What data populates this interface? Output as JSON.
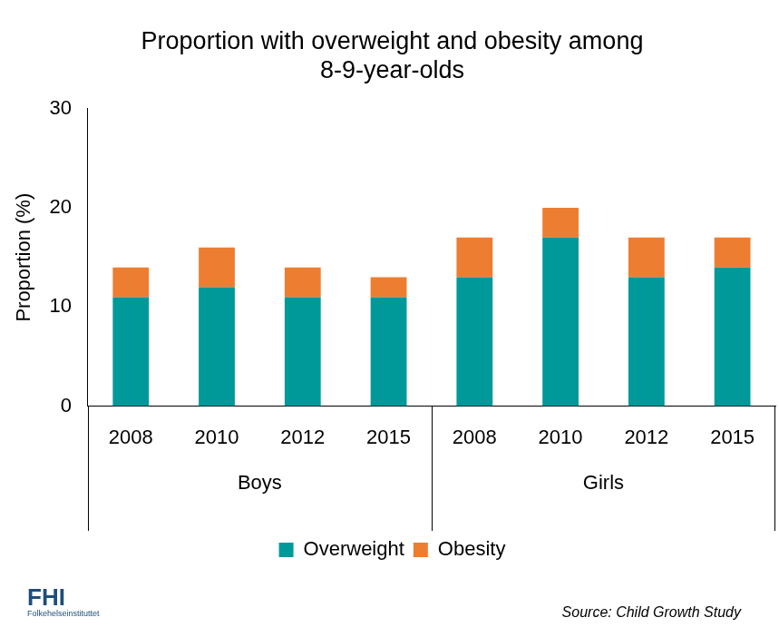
{
  "chart_data": {
    "type": "bar",
    "title": [
      "Proportion with overweight and obesity among",
      "8-9-year-olds"
    ],
    "y_label": "Proportion (%)",
    "categories": [
      "2008",
      "2010",
      "2012",
      "2015",
      "2008",
      "2010",
      "2012",
      "2015"
    ],
    "groups": [
      "Boys",
      "Boys",
      "Boys",
      "Boys",
      "Girls",
      "Girls",
      "Girls",
      "Girls"
    ],
    "series": [
      {
        "name": "Overweight",
        "color": "#009999",
        "values": [
          11,
          12,
          11,
          11,
          13,
          17,
          13,
          14
        ]
      },
      {
        "name": "Obesity",
        "color": "#ed7d31",
        "values": [
          3,
          4,
          3,
          2,
          4,
          3,
          4,
          3
        ]
      }
    ],
    "stacked": true,
    "ylim": [
      0,
      30
    ],
    "yticks": [
      0,
      10,
      20,
      30
    ],
    "grid": false,
    "legend": "bottom",
    "source": "Source: Child Growth Study",
    "logo": [
      "FHI",
      "Folkehelseinstituttet"
    ]
  }
}
